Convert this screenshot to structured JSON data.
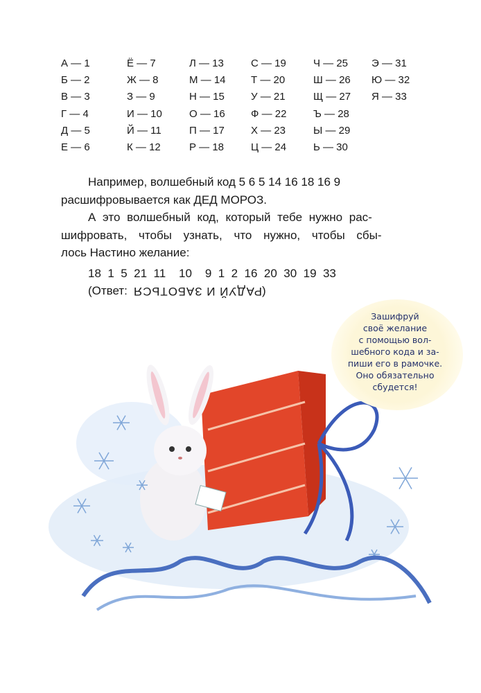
{
  "cipher_table": [
    [
      "А — 1",
      "Б — 2",
      "В — 3",
      "Г — 4",
      "Д — 5",
      "Е — 6"
    ],
    [
      "Ё — 7",
      "Ж — 8",
      "З — 9",
      "И — 10",
      "Й — 11",
      "К — 12"
    ],
    [
      "Л — 13",
      "М — 14",
      "Н — 15",
      "О — 16",
      "П — 17",
      "Р — 18"
    ],
    [
      "С — 19",
      "Т — 20",
      "У — 21",
      "Ф — 22",
      "Х — 23",
      "Ц — 24"
    ],
    [
      "Ч — 25",
      "Ш — 26",
      "Щ — 27",
      "Ъ — 28",
      "Ы — 29",
      "Ь — 30"
    ],
    [
      "Э — 31",
      "Ю — 32",
      "Я — 33"
    ]
  ],
  "text": {
    "line1": "Например, волшебный код 5 6 5  14 16 18 16 9",
    "line2": "расшифровывается как ДЕД МОРОЗ.",
    "line3": "А это волшебный код, который тебе нужно рас-",
    "line4": "шифровать, чтобы узнать, что нужно, чтобы сбы-",
    "line5": "лось Настино желание:",
    "code": "18  1  5  21  11    10    9  1  2  16  20  30  19  33",
    "answer_prefix": "(Ответ:",
    "answer": "РАДУЙ И ЗАБОТЬСЯ",
    "answer_suffix": ")"
  },
  "bubble": {
    "lines": [
      "Зашифруй",
      "своё желание",
      "с помощью вол-",
      "шебного кода и за-",
      "пиши его в рамочке.",
      "Оно обязательно",
      "сбудется!"
    ]
  },
  "colors": {
    "gift": "#e2462a",
    "ribbon": "#3b5bb8",
    "bubble": "#fdf6d8",
    "snow": "#cfe0f3"
  }
}
